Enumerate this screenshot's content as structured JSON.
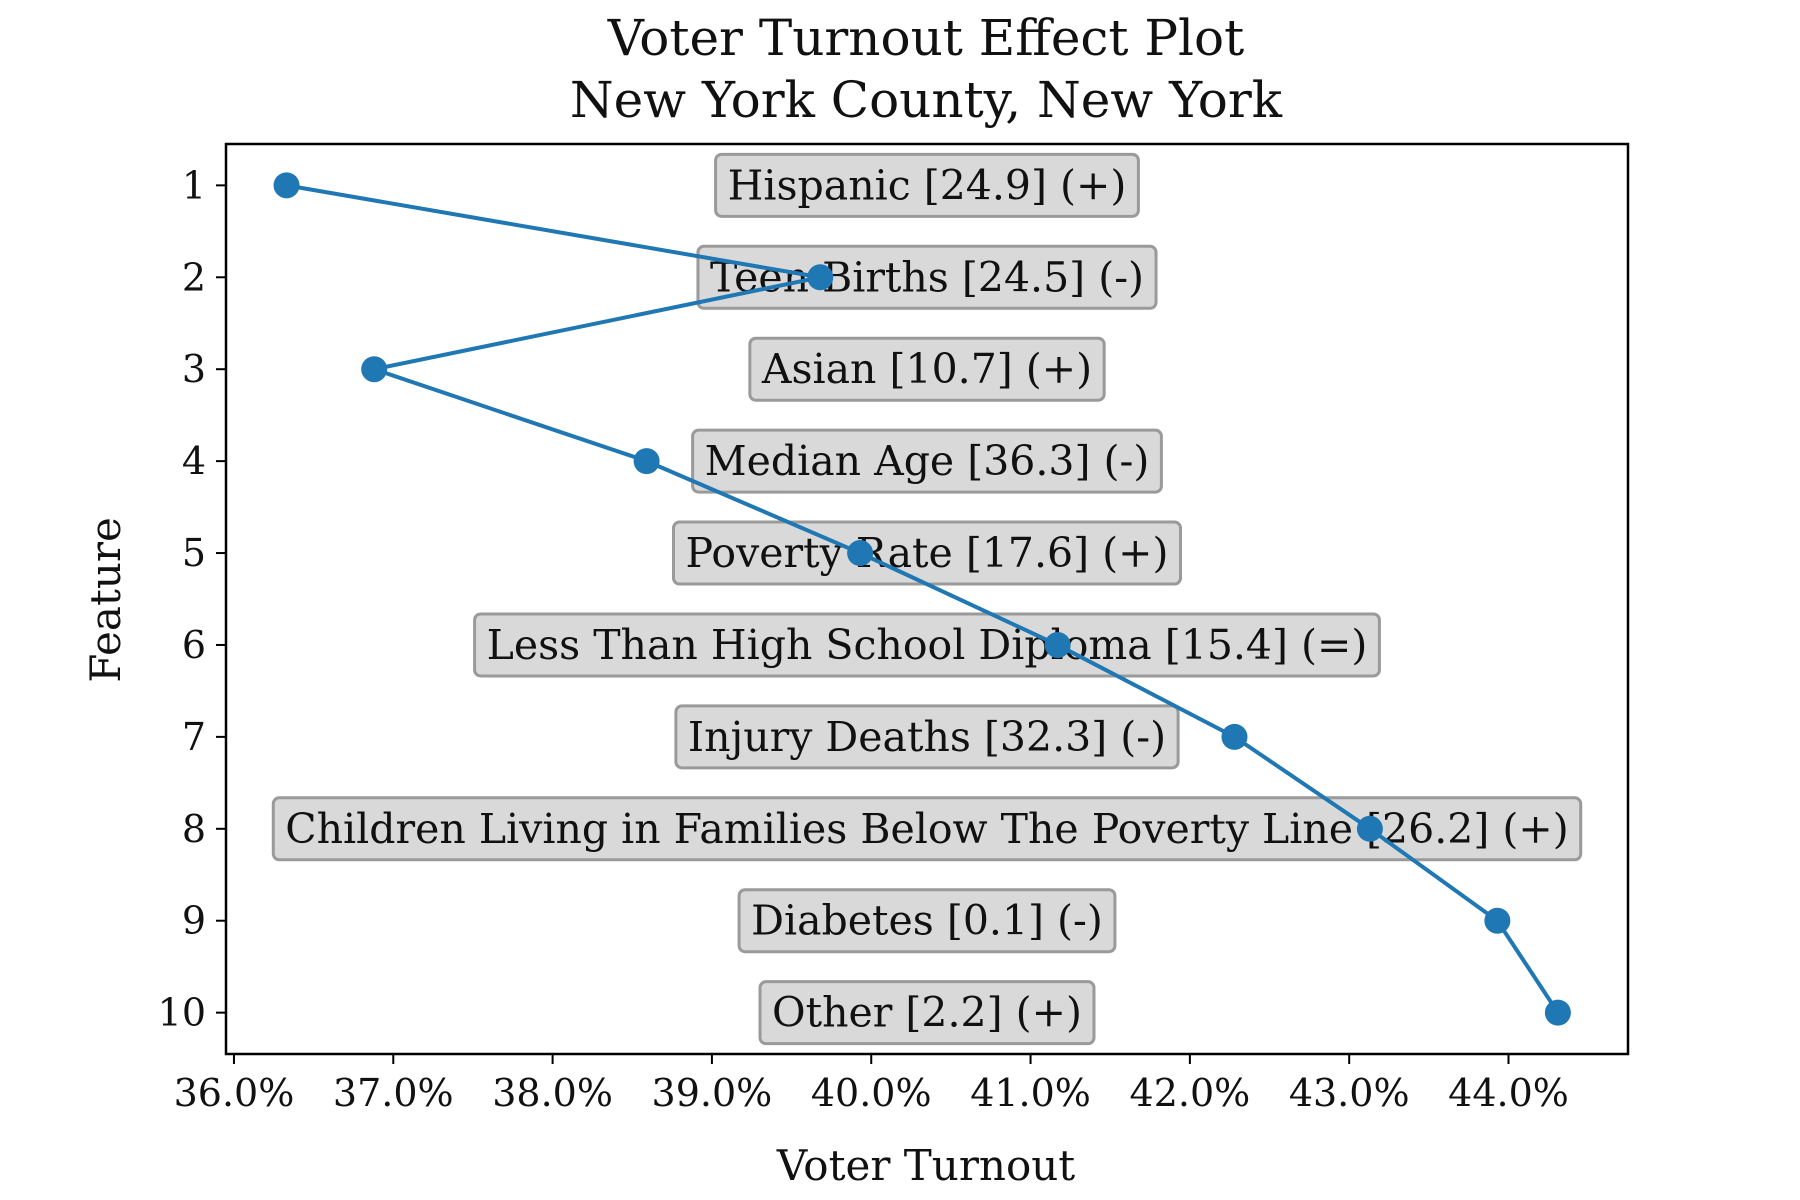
{
  "chart_data": {
    "type": "line",
    "title": "Voter Turnout Effect Plot",
    "subtitle": "New York County, New York",
    "xlabel": "Voter Turnout",
    "ylabel": "Feature",
    "xlim": [
      35.95,
      44.75
    ],
    "ylim": [
      10.45,
      0.55
    ],
    "x_ticks": [
      "36.0%",
      "37.0%",
      "38.0%",
      "39.0%",
      "40.0%",
      "41.0%",
      "42.0%",
      "43.0%",
      "44.0%"
    ],
    "y_ticks": [
      "1",
      "2",
      "3",
      "4",
      "5",
      "6",
      "7",
      "8",
      "9",
      "10"
    ],
    "grid": false,
    "legend": "none",
    "series": [
      {
        "color": "#1f77b4",
        "points": [
          {
            "y": 1,
            "x": 36.33,
            "label": "Hispanic [24.9] (+)"
          },
          {
            "y": 2,
            "x": 39.68,
            "label": "Teen Births [24.5] (-)"
          },
          {
            "y": 3,
            "x": 36.88,
            "label": "Asian [10.7] (+)"
          },
          {
            "y": 4,
            "x": 38.59,
            "label": "Median Age [36.3] (-)"
          },
          {
            "y": 5,
            "x": 39.93,
            "label": "Poverty Rate [17.6] (+)"
          },
          {
            "y": 6,
            "x": 41.17,
            "label": "Less Than High School Diploma [15.4] (=)"
          },
          {
            "y": 7,
            "x": 42.28,
            "label": "Injury Deaths [32.3] (-)"
          },
          {
            "y": 8,
            "x": 43.13,
            "label": "Children Living in Families Below The Poverty Line [26.2] (+)"
          },
          {
            "y": 9,
            "x": 43.93,
            "label": "Diabetes [0.1] (-)"
          },
          {
            "y": 10,
            "x": 44.31,
            "label": "Other [2.2] (+)"
          }
        ]
      }
    ],
    "label_box_color": "#d9d9d9",
    "label_box_border": "#9a9a9a"
  }
}
